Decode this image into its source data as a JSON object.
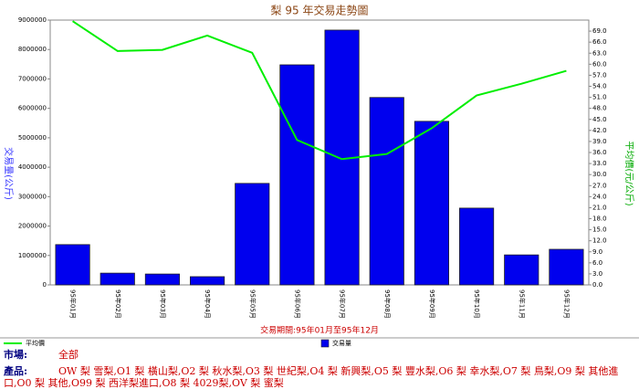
{
  "chart_data": {
    "type": "bar_line",
    "title": "梨 95 年交易走勢圖",
    "subtitle": "交易期間:95年01月至95年12月",
    "ylabel": "交易量(公斤)",
    "y2label": "平均價(元/公斤)",
    "categories": [
      "95年01月",
      "95年02月",
      "95年03月",
      "95年04月",
      "95年05月",
      "95年06月",
      "95年07月",
      "95年08月",
      "95年09月",
      "95年10月",
      "95年11月",
      "95年12月"
    ],
    "series": [
      {
        "name": "交易量",
        "type": "bar",
        "color": "#0000ee",
        "values": [
          1370000,
          400000,
          370000,
          280000,
          3450000,
          7480000,
          8660000,
          6370000,
          5560000,
          2610000,
          1020000,
          1210000
        ]
      },
      {
        "name": "平均價",
        "type": "line",
        "axis": "y2",
        "color": "#00ee00",
        "values": [
          71.7,
          63.6,
          63.9,
          67.8,
          63.1,
          39.4,
          34.2,
          35.6,
          42.6,
          51.5,
          54.7,
          58.2
        ]
      }
    ],
    "ylim": [
      0,
      9000000
    ],
    "yticks": [
      0,
      1000000,
      2000000,
      3000000,
      4000000,
      5000000,
      6000000,
      7000000,
      8000000,
      9000000
    ],
    "y2lim": [
      0,
      72
    ],
    "y2ticks": [
      {
        "value": 0,
        "label": "0.0"
      },
      {
        "value": 3,
        "label": "3.0"
      },
      {
        "value": 6,
        "label": "6.0"
      },
      {
        "value": 9,
        "label": "9.0"
      },
      {
        "value": 12,
        "label": "12.0"
      },
      {
        "value": 15,
        "label": "15.0"
      },
      {
        "value": 18,
        "label": "18.0"
      },
      {
        "value": 21,
        "label": "21.0"
      },
      {
        "value": 24,
        "label": "24.0"
      },
      {
        "value": 27,
        "label": "27.0"
      },
      {
        "value": 30,
        "label": "30.0"
      },
      {
        "value": 33,
        "label": "33.0"
      },
      {
        "value": 36,
        "label": "36.0"
      },
      {
        "value": 39,
        "label": "39.0"
      },
      {
        "value": 42,
        "label": "42.0"
      },
      {
        "value": 45,
        "label": "45.0"
      },
      {
        "value": 48,
        "label": "48.0"
      },
      {
        "value": 51,
        "label": "51.0"
      },
      {
        "value": 54,
        "label": "54.0"
      },
      {
        "value": 57,
        "label": "57.0"
      },
      {
        "value": 60,
        "label": "60.0"
      },
      {
        "value": 63,
        "label": "63.0"
      },
      {
        "value": 66,
        "label": "66.0"
      },
      {
        "value": 69,
        "label": "69.0"
      }
    ],
    "grid": false
  },
  "footer": {
    "market_label": "市場:",
    "market": "全部",
    "product_label": "產品:",
    "products": "OW 梨 雪梨,O1 梨 橫山梨,O2 梨 秋水梨,O3 梨 世紀梨,O4 梨 新興梨,O5 梨 豐水梨,O6 梨 幸水梨,O7 梨 鳥梨,O9 梨 其他進口,O0 梨 其他,O99 梨 西洋梨進口,O8 梨 4029梨,OV 梨 蜜梨"
  }
}
